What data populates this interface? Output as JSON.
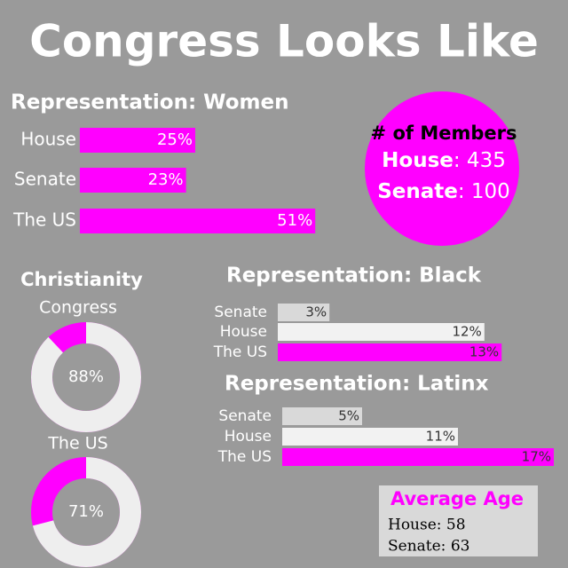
{
  "title": "Congress Looks Like",
  "chart_data": [
    {
      "type": "bar",
      "title": "Representation: Women",
      "categories": [
        "House",
        "Senate",
        "The US"
      ],
      "values": [
        25,
        23,
        51
      ],
      "value_labels": [
        "25%",
        "23%",
        "51%"
      ],
      "colors": [
        "#ff00ff",
        "#ff00ff",
        "#ff00ff"
      ]
    },
    {
      "type": "bar",
      "title": "Representation: Black",
      "categories": [
        "Senate",
        "House",
        "The US"
      ],
      "values": [
        3,
        12,
        13
      ],
      "value_labels": [
        "3%",
        "12%",
        "13%"
      ],
      "colors": [
        "#d9d9d9",
        "#f2f2f2",
        "#ff00ff"
      ]
    },
    {
      "type": "bar",
      "title": "Representation: Latinx",
      "categories": [
        "Senate",
        "House",
        "The US"
      ],
      "values": [
        5,
        11,
        17
      ],
      "value_labels": [
        "5%",
        "11%",
        "17%"
      ],
      "colors": [
        "#d9d9d9",
        "#f2f2f2",
        "#ff00ff"
      ]
    },
    {
      "type": "donut",
      "title": "Congress",
      "values": [
        88
      ],
      "value_labels": [
        "88%"
      ],
      "colors": [
        "#eeeeee",
        "#ff00ff"
      ]
    },
    {
      "type": "donut",
      "title": "The US",
      "values": [
        71
      ],
      "value_labels": [
        "71%"
      ],
      "colors": [
        "#eeeeee",
        "#ff00ff"
      ]
    }
  ],
  "christianity": {
    "title": "Christianity"
  },
  "members": {
    "title": "# of Members",
    "rows": [
      {
        "label": "House",
        "value": ": 435"
      },
      {
        "label": "Senate",
        "value": ": 100"
      }
    ]
  },
  "average_age": {
    "title": "Average Age",
    "rows": [
      "House: 58",
      "Senate: 63"
    ]
  }
}
